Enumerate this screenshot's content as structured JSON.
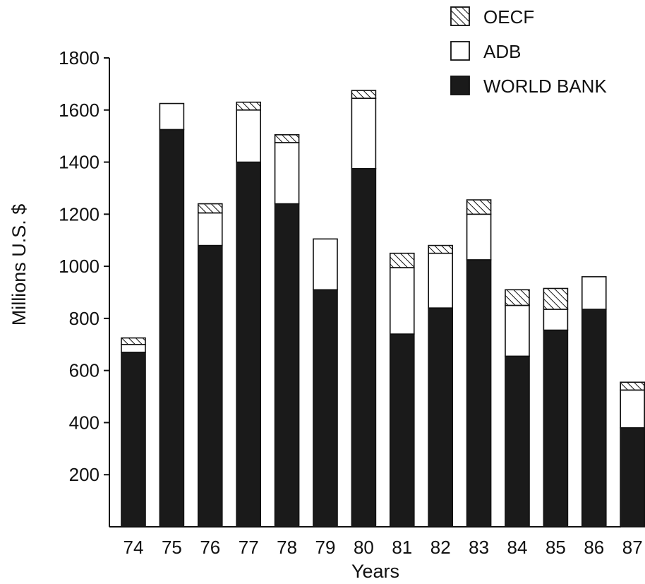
{
  "chart_data": {
    "type": "bar",
    "stacked": true,
    "title": "",
    "xlabel": "Years",
    "ylabel": "Millions U.S. $",
    "ylim": [
      0,
      1800
    ],
    "yticks": [
      200,
      400,
      600,
      800,
      1000,
      1200,
      1400,
      1600,
      1800
    ],
    "categories": [
      "74",
      "75",
      "76",
      "77",
      "78",
      "79",
      "80",
      "81",
      "82",
      "83",
      "84",
      "85",
      "86",
      "87"
    ],
    "series": [
      {
        "name": "WORLD BANK",
        "color": "#1a1a1a",
        "values": [
          670,
          1525,
          1080,
          1400,
          1240,
          910,
          1375,
          740,
          840,
          1025,
          655,
          755,
          835,
          380
        ]
      },
      {
        "name": "ADB",
        "color": "#ffffff",
        "values": [
          30,
          100,
          125,
          200,
          235,
          195,
          270,
          255,
          210,
          175,
          195,
          80,
          125,
          145
        ]
      },
      {
        "name": "OECF",
        "color": "#ffffff",
        "pattern": "hatched",
        "values": [
          25,
          0,
          35,
          30,
          30,
          0,
          30,
          55,
          30,
          55,
          60,
          80,
          0,
          30
        ]
      }
    ],
    "legend": {
      "position": "top-right",
      "items": [
        {
          "label": "OECF",
          "swatch": "hatched"
        },
        {
          "label": "ADB",
          "swatch": "white"
        },
        {
          "label": "WORLD BANK",
          "swatch": "black"
        }
      ]
    },
    "grid": false
  }
}
